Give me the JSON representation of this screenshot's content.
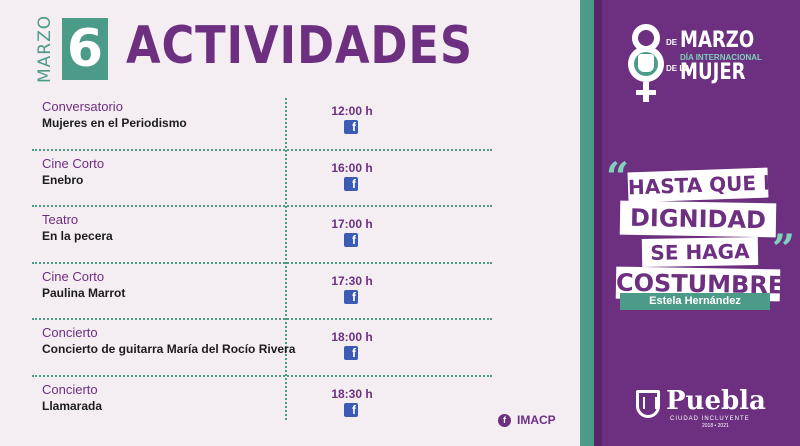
{
  "header": {
    "month": "MARZO",
    "day": "6",
    "title": "ACTIVIDADES"
  },
  "events": [
    {
      "category": "Conversatorio",
      "title": "Mujeres en el Periodismo",
      "time": "12:00 h",
      "icon": "facebook-icon"
    },
    {
      "category": "Cine Corto",
      "title": "Enebro",
      "time": "16:00 h",
      "icon": "facebook-icon"
    },
    {
      "category": "Teatro",
      "title": "En la pecera",
      "time": "17:00 h",
      "icon": "facebook-icon"
    },
    {
      "category": "Cine Corto",
      "title": "Paulina Marrot",
      "time": "17:30 h",
      "icon": "facebook-icon"
    },
    {
      "category": "Concierto",
      "title": "Concierto de guitarra María del Rocío Rivera",
      "time": "18:00 h",
      "icon": "facebook-icon"
    },
    {
      "category": "Concierto",
      "title": "Llamarada",
      "time": "18:30 h",
      "icon": "facebook-icon"
    }
  ],
  "footer": {
    "handle": "IMACP",
    "icon": "facebook-icon"
  },
  "poster": {
    "logo": {
      "number": "8",
      "de1": "DE",
      "marzo": "MARZO",
      "dia": "DÍA INTERNACIONAL",
      "de2": "DE LA",
      "mujer": "MUJER"
    },
    "quote": {
      "lines": [
        "HASTA QUE LA",
        "DIGNIDAD",
        "SE HAGA",
        "COSTUMBRE"
      ],
      "author": "Estela Hernández"
    },
    "brand": {
      "name": "Puebla",
      "subtitle": "CIUDAD INCLUYENTE",
      "years": "2018 • 2021"
    }
  },
  "colors": {
    "purple": "#6d2f80",
    "teal": "#4c9a88",
    "mint": "#7fd1bb",
    "background": "#f4eef3",
    "facebook": "#3b5bb5"
  }
}
